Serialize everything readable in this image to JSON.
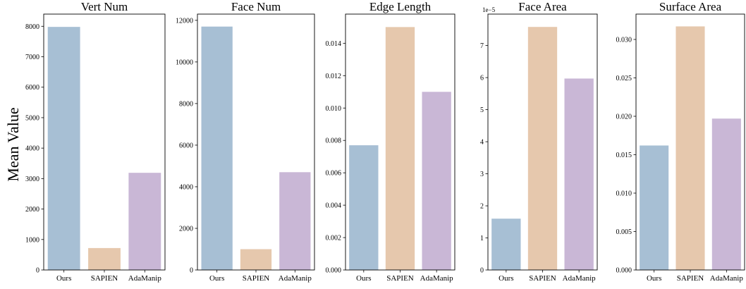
{
  "figure": {
    "ylabel": "Mean Value"
  },
  "chart_data": [
    {
      "type": "bar",
      "title": "Vert Num",
      "categories": [
        "Ours",
        "SAPIEN",
        "AdaManip"
      ],
      "values": [
        7980,
        720,
        3190
      ],
      "ylim": [
        0,
        8400
      ],
      "yticks": [
        0,
        1000,
        2000,
        3000,
        4000,
        5000,
        6000,
        7000,
        8000
      ],
      "ytick_labels": [
        "0",
        "1000",
        "2000",
        "3000",
        "4000",
        "5000",
        "6000",
        "7000",
        "8000"
      ],
      "offset_label": "",
      "colors": [
        "#a7bfd4",
        "#e6c8ad",
        "#c9b7d6"
      ],
      "grid": false
    },
    {
      "type": "bar",
      "title": "Face Num",
      "categories": [
        "Ours",
        "SAPIEN",
        "AdaManip"
      ],
      "values": [
        11700,
        1000,
        4700
      ],
      "ylim": [
        0,
        12300
      ],
      "yticks": [
        0,
        2000,
        4000,
        6000,
        8000,
        10000,
        12000
      ],
      "ytick_labels": [
        "0",
        "2000",
        "4000",
        "6000",
        "8000",
        "10000",
        "12000"
      ],
      "offset_label": "",
      "colors": [
        "#a7bfd4",
        "#e6c8ad",
        "#c9b7d6"
      ],
      "grid": false
    },
    {
      "type": "bar",
      "title": "Edge Length",
      "categories": [
        "Ours",
        "SAPIEN",
        "AdaManip"
      ],
      "values": [
        0.0077,
        0.015,
        0.011
      ],
      "ylim": [
        0,
        0.0158
      ],
      "yticks": [
        0,
        0.002,
        0.004,
        0.006,
        0.008,
        0.01,
        0.012,
        0.014
      ],
      "ytick_labels": [
        "0.000",
        "0.002",
        "0.004",
        "0.006",
        "0.008",
        "0.010",
        "0.012",
        "0.014"
      ],
      "offset_label": "",
      "colors": [
        "#a7bfd4",
        "#e6c8ad",
        "#c9b7d6"
      ],
      "grid": false
    },
    {
      "type": "bar",
      "title": "Face Area",
      "categories": [
        "Ours",
        "SAPIEN",
        "AdaManip"
      ],
      "values": [
        1.6e-05,
        7.58e-05,
        5.97e-05
      ],
      "ylim": [
        0,
        7.98e-05
      ],
      "yticks": [
        0,
        1e-05,
        2e-05,
        3e-05,
        4e-05,
        5e-05,
        6e-05,
        7e-05
      ],
      "ytick_labels": [
        "0",
        "1",
        "2",
        "3",
        "4",
        "5",
        "6",
        "7"
      ],
      "offset_label": "1e−5",
      "colors": [
        "#a7bfd4",
        "#e6c8ad",
        "#c9b7d6"
      ],
      "grid": false
    },
    {
      "type": "bar",
      "title": "Surface Area",
      "categories": [
        "Ours",
        "SAPIEN",
        "AdaManip"
      ],
      "values": [
        0.0162,
        0.0317,
        0.0197
      ],
      "ylim": [
        0,
        0.0333
      ],
      "yticks": [
        0,
        0.005,
        0.01,
        0.015,
        0.02,
        0.025,
        0.03
      ],
      "ytick_labels": [
        "0.000",
        "0.005",
        "0.010",
        "0.015",
        "0.020",
        "0.025",
        "0.030"
      ],
      "offset_label": "",
      "colors": [
        "#a7bfd4",
        "#e6c8ad",
        "#c9b7d6"
      ],
      "grid": false
    }
  ]
}
